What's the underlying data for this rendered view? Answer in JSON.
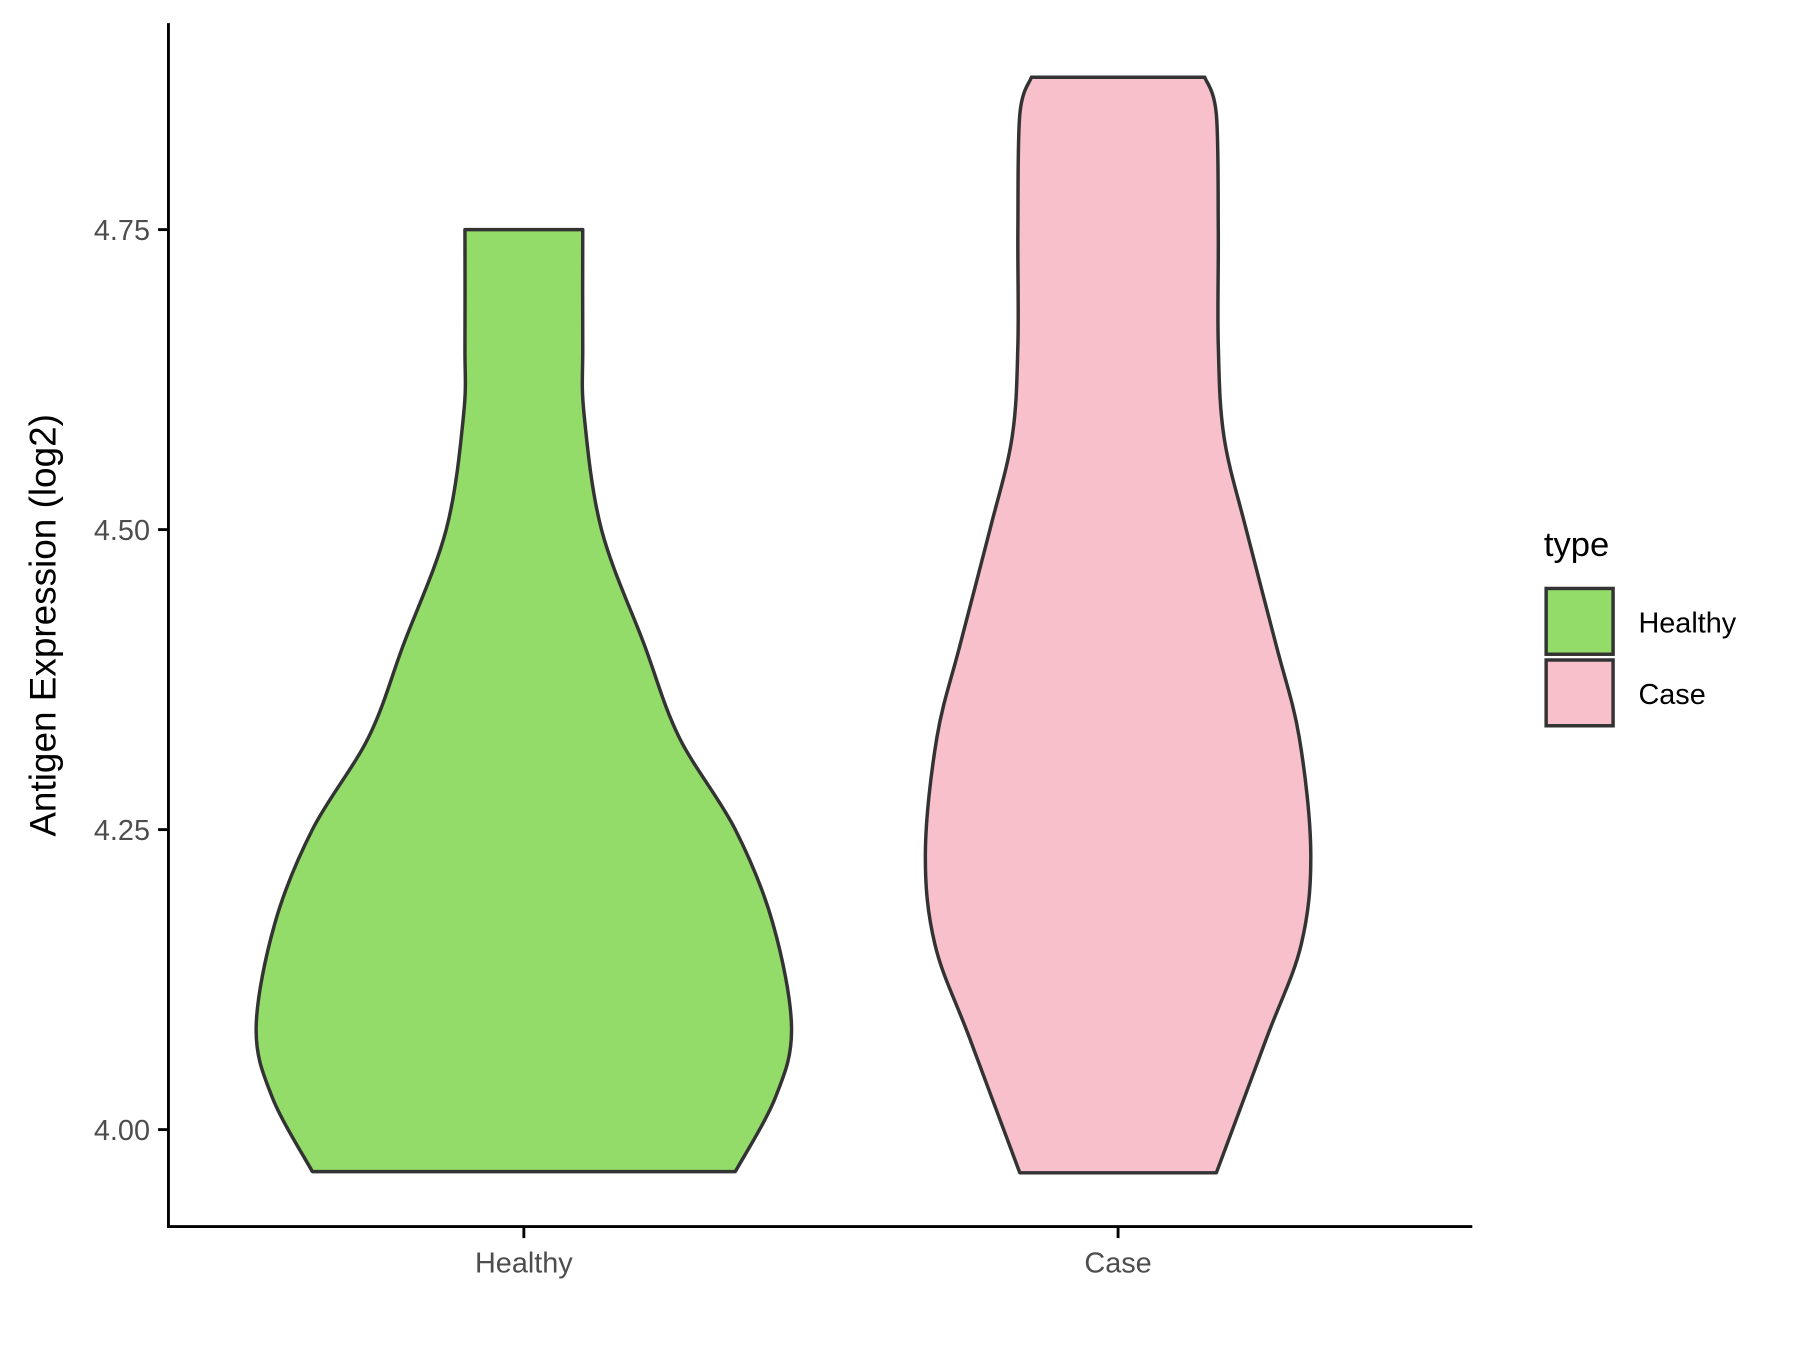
{
  "chart_data": {
    "type": "violin",
    "ylabel": "Antigen Expression (log2)",
    "xlabel": "",
    "categories": [
      "Healthy",
      "Case"
    ],
    "y_ticks": [
      "4.00",
      "4.25",
      "4.50",
      "4.75"
    ],
    "y_tick_values": [
      4.0,
      4.25,
      4.5,
      4.75
    ],
    "ylim": [
      3.92,
      4.92
    ],
    "grid": false,
    "legend": {
      "title": "type",
      "position": "right",
      "entries": [
        "Healthy",
        "Case"
      ]
    },
    "colors": {
      "Healthy": "#93DC6A",
      "Case": "#F7C0CB",
      "outline": "#333333"
    },
    "series": [
      {
        "name": "Healthy",
        "min": 3.965,
        "max": 4.75,
        "density_profile": [
          {
            "y": 3.965,
            "w": 0.79
          },
          {
            "y": 4.027,
            "w": 0.94
          },
          {
            "y": 4.085,
            "w": 1.0
          },
          {
            "y": 4.172,
            "w": 0.93
          },
          {
            "y": 4.25,
            "w": 0.79
          },
          {
            "y": 4.327,
            "w": 0.58
          },
          {
            "y": 4.404,
            "w": 0.45
          },
          {
            "y": 4.5,
            "w": 0.29
          },
          {
            "y": 4.596,
            "w": 0.225
          },
          {
            "y": 4.654,
            "w": 0.22
          },
          {
            "y": 4.75,
            "w": 0.22
          }
        ]
      },
      {
        "name": "Case",
        "min": 3.964,
        "max": 4.877,
        "density_profile": [
          {
            "y": 3.964,
            "w": 0.51
          },
          {
            "y": 4.076,
            "w": 0.77
          },
          {
            "y": 4.154,
            "w": 0.95
          },
          {
            "y": 4.231,
            "w": 1.0
          },
          {
            "y": 4.327,
            "w": 0.94
          },
          {
            "y": 4.404,
            "w": 0.82
          },
          {
            "y": 4.5,
            "w": 0.665
          },
          {
            "y": 4.577,
            "w": 0.55
          },
          {
            "y": 4.654,
            "w": 0.52
          },
          {
            "y": 4.75,
            "w": 0.52
          },
          {
            "y": 4.846,
            "w": 0.51
          },
          {
            "y": 4.877,
            "w": 0.45
          }
        ]
      }
    ]
  }
}
